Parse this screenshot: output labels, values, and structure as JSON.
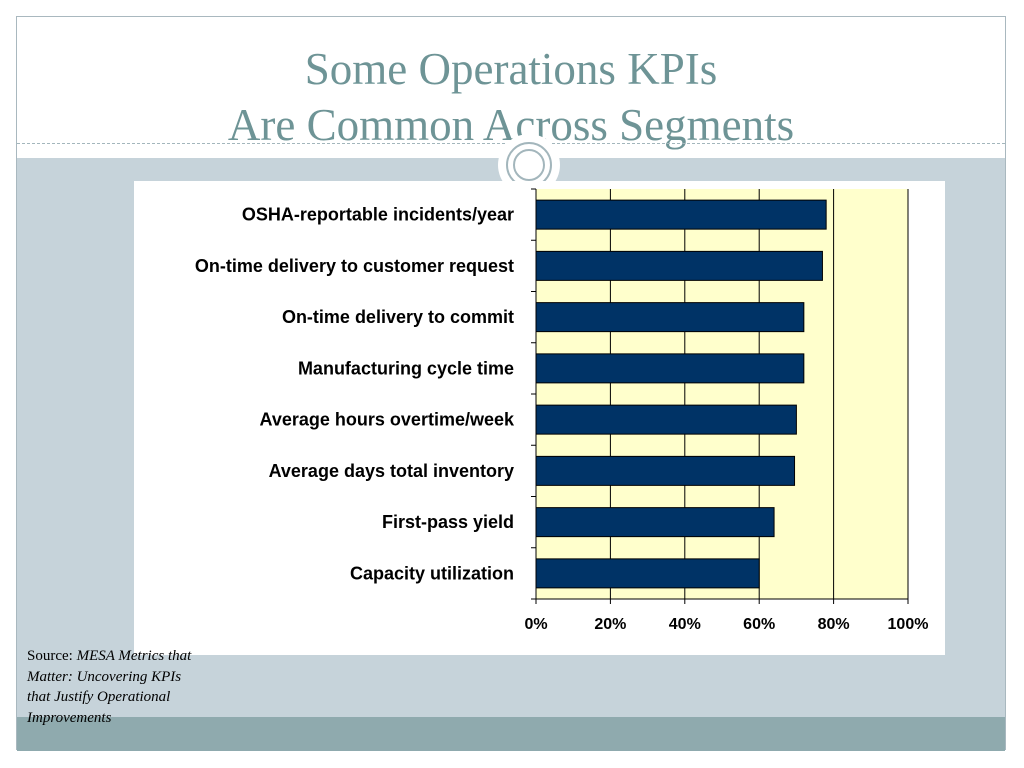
{
  "slide": {
    "title_line1": "Some Operations KPIs",
    "title_line2": "Are Common Across Segments",
    "source_label": "Source:",
    "source_title": "MESA Metrics that Matter: Uncovering KPIs that Justify Operational Improvements"
  },
  "colors": {
    "title": "#6e9496",
    "band": "#c6d3da",
    "bottom_band": "#8faaae",
    "plot_background": "#ffffcc",
    "bar_fill": "#003366"
  },
  "chart_data": {
    "type": "bar",
    "orientation": "horizontal",
    "categories": [
      "OSHA-reportable incidents/year",
      "On-time delivery to customer request",
      "On-time delivery to commit",
      "Manufacturing cycle time",
      "Average hours overtime/week",
      "Average days total inventory",
      "First-pass yield",
      "Capacity utilization"
    ],
    "values": [
      78,
      77,
      72,
      72,
      70,
      69.5,
      64,
      60
    ],
    "value_unit": "%",
    "xlim": [
      0,
      100
    ],
    "xticks": [
      "0%",
      "20%",
      "40%",
      "60%",
      "80%",
      "100%"
    ],
    "xlabel": "",
    "ylabel": "",
    "grid": "vertical",
    "legend": "none"
  }
}
